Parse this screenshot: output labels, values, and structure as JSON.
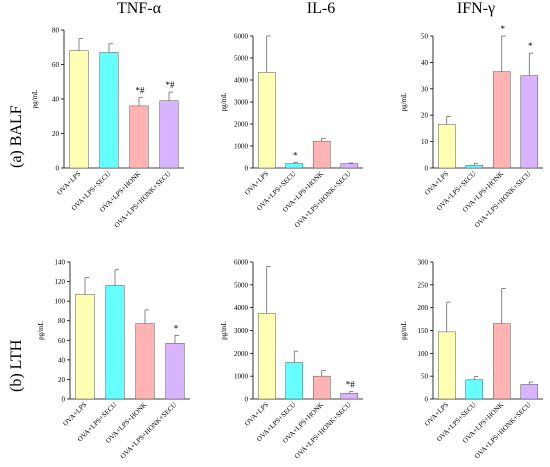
{
  "column_titles": [
    "TNF-α",
    "IL-6",
    "IFN-γ"
  ],
  "row_labels": [
    "(a) BALF",
    "(b) LTH"
  ],
  "colors": {
    "OVA+LPS": "#ffffb3",
    "OVA+LPS+SECU": "#66ffff",
    "OVA+LPS+HONK": "#ffb3b3",
    "OVA+LPS+HONK+SECU": "#d9b3ff"
  },
  "chart_data": [
    {
      "type": "bar",
      "panel": "BALF TNF-α",
      "ylabel": "pg/mL",
      "ylim": [
        0,
        80
      ],
      "yticks": [
        0,
        20,
        40,
        60,
        80
      ],
      "categories": [
        "OVA+LPS",
        "OVA+LPS+SECU",
        "OVA+LPS+HONK",
        "OVA+LPS+HONK+SECU"
      ],
      "values": [
        68,
        67,
        36,
        39
      ],
      "errors": [
        7,
        5,
        5,
        5
      ],
      "annotations": [
        "",
        "",
        "*#",
        "*#"
      ]
    },
    {
      "type": "bar",
      "panel": "BALF IL-6",
      "ylabel": "pg/mL",
      "ylim": [
        0,
        6000
      ],
      "yticks": [
        0,
        1000,
        2000,
        3000,
        4000,
        5000,
        6000
      ],
      "categories": [
        "OVA+LPS",
        "OVA+LPS+SECU",
        "OVA+LPS+HONK",
        "OVA+LPS+HONK+SECU"
      ],
      "values": [
        4350,
        200,
        1220,
        200
      ],
      "errors": [
        1650,
        60,
        130,
        30
      ],
      "annotations": [
        "",
        "*",
        "",
        ""
      ]
    },
    {
      "type": "bar",
      "panel": "BALF IFN-γ",
      "ylabel": "pg/mL",
      "ylim": [
        0,
        50
      ],
      "yticks": [
        0,
        10,
        20,
        30,
        40,
        50
      ],
      "categories": [
        "OVA+LPS",
        "OVA+LPS+SECU",
        "OVA+LPS+HONK",
        "OVA+LPS+HONK+SECU"
      ],
      "values": [
        16.5,
        1,
        36.5,
        35
      ],
      "errors": [
        3,
        0.8,
        13.5,
        8.5
      ],
      "annotations": [
        "",
        "",
        "*",
        "*"
      ]
    },
    {
      "type": "bar",
      "panel": "LTH TNF-α",
      "ylabel": "pg/mL",
      "ylim": [
        0,
        140
      ],
      "yticks": [
        0,
        20,
        40,
        60,
        80,
        100,
        120,
        140
      ],
      "categories": [
        "OVA+LPS",
        "OVA+LPS+SECU",
        "OVA+LPS+HONK",
        "OVA+LPS+HONK+SECU"
      ],
      "values": [
        107,
        116,
        77,
        57
      ],
      "errors": [
        17,
        16,
        14,
        8
      ],
      "annotations": [
        "",
        "",
        "",
        "*"
      ]
    },
    {
      "type": "bar",
      "panel": "LTH IL-6",
      "ylabel": "pg/mL",
      "ylim": [
        0,
        6000
      ],
      "yticks": [
        0,
        1000,
        2000,
        3000,
        4000,
        5000,
        6000
      ],
      "categories": [
        "OVA+LPS",
        "OVA+LPS+SECU",
        "OVA+LPS+HONK",
        "OVA+LPS+HONK+SECU"
      ],
      "values": [
        3750,
        1600,
        1000,
        250
      ],
      "errors": [
        2050,
        500,
        250,
        70
      ],
      "annotations": [
        "",
        "",
        "",
        "*#"
      ]
    },
    {
      "type": "bar",
      "panel": "LTH IFN-γ",
      "ylabel": "pg/mL",
      "ylim": [
        0,
        300
      ],
      "yticks": [
        0,
        50,
        100,
        150,
        200,
        250,
        300
      ],
      "categories": [
        "OVA+LPS",
        "OVA+LPS+SECU",
        "OVA+LPS+HONK",
        "OVA+LPS+HONK+SECU"
      ],
      "values": [
        147,
        42,
        165,
        32
      ],
      "errors": [
        65,
        7,
        77,
        5
      ],
      "annotations": [
        "",
        "",
        "",
        ""
      ]
    }
  ]
}
